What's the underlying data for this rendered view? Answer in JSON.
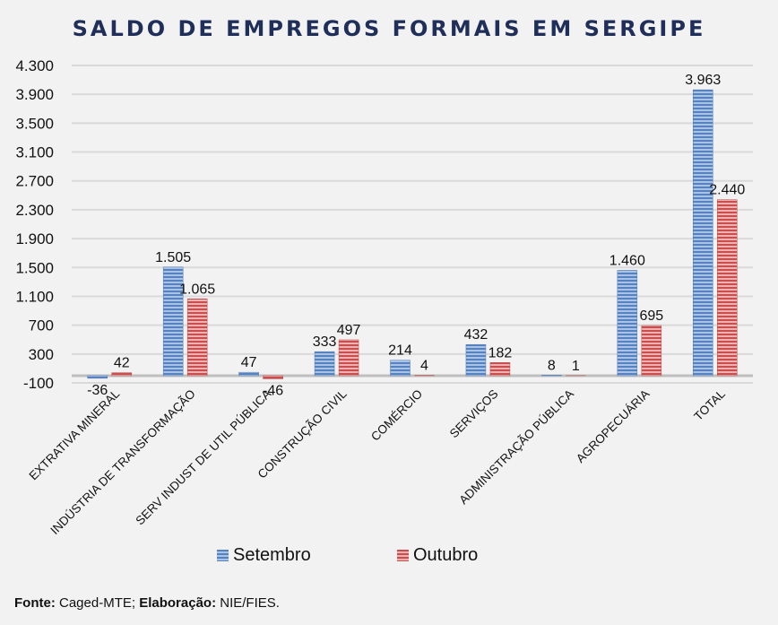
{
  "chart_data": {
    "type": "bar",
    "title": "SALDO DE EMPREGOS FORMAIS EM SERGIPE",
    "xlabel": "",
    "ylabel": "",
    "ylim": [
      -100,
      4300
    ],
    "yticks": [
      -100,
      300,
      700,
      1100,
      1500,
      1900,
      2300,
      2700,
      3100,
      3500,
      3900,
      4300
    ],
    "ytick_labels": [
      "-100",
      "300",
      "700",
      "1.100",
      "1.500",
      "1.900",
      "2.300",
      "2.700",
      "3.100",
      "3.500",
      "3.900",
      "4.300"
    ],
    "grid": true,
    "categories": [
      "EXTRATIVA MINERAL",
      "INDÚSTRIA DE TRANSFORMAÇÃO",
      "SERV INDUST DE UTIL PÚBLICA",
      "CONSTRUÇÃO CIVIL",
      "COMÉRCIO",
      "SERVIÇOS",
      "ADMINISTRAÇÃO PÚBLICA",
      "AGROPECUÁRIA",
      "TOTAL"
    ],
    "series": [
      {
        "name": "Setembro",
        "color": "#5b88c4",
        "values": [
          -36,
          1505,
          47,
          333,
          214,
          432,
          8,
          1460,
          3963
        ],
        "labels": [
          "-36",
          "1.505",
          "47",
          "333",
          "214",
          "432",
          "8",
          "1.460",
          "3.963"
        ]
      },
      {
        "name": "Outubro",
        "color": "#cc5555",
        "values": [
          42,
          1065,
          -46,
          497,
          4,
          182,
          1,
          695,
          2440
        ],
        "labels": [
          "42",
          "1.065",
          "-46",
          "497",
          "4",
          "182",
          "1",
          "695",
          "2.440"
        ]
      }
    ],
    "legend_position": "bottom"
  },
  "footer": {
    "source_label": "Fonte:",
    "source_value": " Caged-MTE; ",
    "elab_label": "Elaboração:",
    "elab_value": " NIE/FIES."
  }
}
